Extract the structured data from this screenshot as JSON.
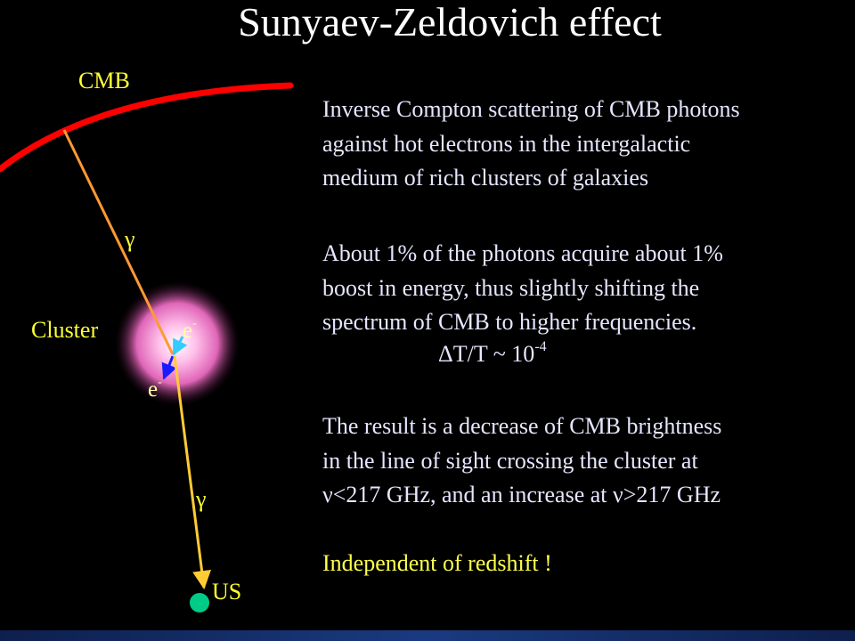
{
  "title": "Sunyaev-Zeldovich effect",
  "diagram": {
    "cmb_label": "CMB",
    "cluster_label": "Cluster",
    "observer_label": "US",
    "photon_symbol": "γ",
    "electron_symbol": "e",
    "electron_charge": "-",
    "colors": {
      "cmb_arc": "#ff0000",
      "incoming_ray": "#ff9933",
      "outgoing_ray": "#ffcc33",
      "cluster_glow": "#ff99dd",
      "electron_in": "#33ccff",
      "electron_out": "#1a1aff",
      "observer": "#00cc88",
      "label": "#ffff33"
    }
  },
  "text": {
    "paragraph1": [
      "Inverse Compton scattering of CMB photons",
      "against hot electrons in the intergalactic",
      "medium of rich clusters of galaxies"
    ],
    "paragraph2": [
      "About 1% of the photons acquire about 1%",
      "boost in energy, thus slightly shifting the",
      "spectrum of CMB to higher frequencies."
    ],
    "formula": {
      "base": "ΔT/T ~ 10",
      "exponent": "-4"
    },
    "paragraph3": [
      "The result is a decrease of CMB brightness",
      "in the line of sight crossing the cluster at",
      "ν<217 GHz, and an increase at ν>217 GHz"
    ],
    "paragraph4": "Independent of redshift !"
  },
  "colors": {
    "background": "#000000",
    "body_text": "#e6e6ff",
    "highlight_text": "#ffff4d",
    "bottom_bar": "#1a3a80"
  }
}
